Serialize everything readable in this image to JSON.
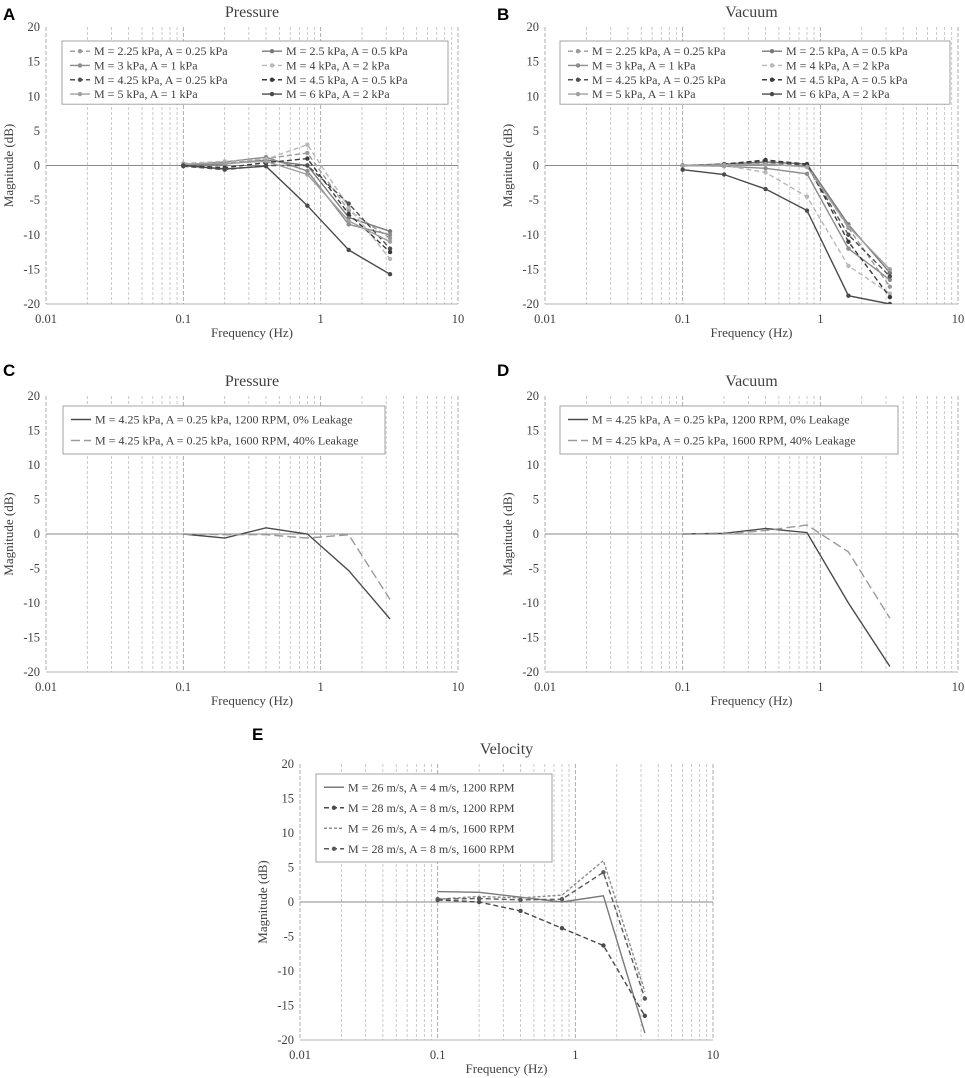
{
  "chart_data": [
    {
      "panel": "A",
      "type": "line",
      "title": "Pressure",
      "xlabel": "Frequency (Hz)",
      "ylabel": "Magnitude (dB)",
      "xscale": "log",
      "xlim": [
        0.01,
        10
      ],
      "ylim": [
        -20,
        20
      ],
      "xticks": [
        "0.01",
        "0.1",
        "1",
        "10"
      ],
      "yticks": [
        "20",
        "15",
        "10",
        "5",
        "0",
        "-5",
        "-10",
        "-15",
        "-20"
      ],
      "x": [
        0.1,
        0.2,
        0.4,
        0.8,
        1.6,
        3.2
      ],
      "legend_columns": 2,
      "series": [
        {
          "name": "M = 2.25 kPa, A = 0.25 kPa",
          "values": [
            0.2,
            0.3,
            1.0,
            1.8,
            -6.5,
            -10.5
          ],
          "color": "#9a9a9a",
          "dash": "5,3",
          "marker": true
        },
        {
          "name": "M = 2.5 kPa, A = 0.5 kPa",
          "values": [
            0.0,
            0.2,
            0.8,
            0.0,
            -7.5,
            -9.5
          ],
          "color": "#7a7a7a",
          "dash": "",
          "marker": true
        },
        {
          "name": "M = 3 kPa, A = 1 kPa",
          "values": [
            0.1,
            0.5,
            1.2,
            -0.8,
            -8.5,
            -10.0
          ],
          "color": "#8c8c8c",
          "dash": "",
          "marker": true
        },
        {
          "name": "M = 4 kPa, A = 2 kPa",
          "values": [
            0.3,
            0.6,
            0.9,
            3.0,
            -6.0,
            -13.5
          ],
          "color": "#b8b8b8",
          "dash": "5,3",
          "marker": true
        },
        {
          "name": "M = 4.25 kPa, A = 0.25 kPa",
          "values": [
            -0.1,
            -0.6,
            0.0,
            0.0,
            -5.5,
            -12.0
          ],
          "color": "#505050",
          "dash": "5,3",
          "marker": true
        },
        {
          "name": "M = 4.5 kPa, A = 0.5 kPa",
          "values": [
            0.0,
            -0.3,
            0.4,
            1.0,
            -7.0,
            -12.5
          ],
          "color": "#3a3a3a",
          "dash": "5,3",
          "marker": true
        },
        {
          "name": "M = 5 kPa, A = 1 kPa",
          "values": [
            0.2,
            0.3,
            0.6,
            -1.3,
            -8.0,
            -11.0
          ],
          "color": "#a0a0a0",
          "dash": "",
          "marker": true
        },
        {
          "name": "M = 6 kPa, A = 2 kPa",
          "values": [
            0.0,
            -0.5,
            -0.1,
            -5.8,
            -12.2,
            -15.7
          ],
          "color": "#4a4a4a",
          "dash": "",
          "marker": true
        }
      ]
    },
    {
      "panel": "B",
      "type": "line",
      "title": "Vacuum",
      "xlabel": "Frequency (Hz)",
      "ylabel": "Magnitude (dB)",
      "xscale": "log",
      "xlim": [
        0.01,
        10
      ],
      "ylim": [
        -20,
        20
      ],
      "xticks": [
        "0.01",
        "0.1",
        "1",
        "10"
      ],
      "yticks": [
        "20",
        "15",
        "10",
        "5",
        "0",
        "-5",
        "-10",
        "-15",
        "-20"
      ],
      "x": [
        0.1,
        0.2,
        0.4,
        0.8,
        1.6,
        3.2
      ],
      "legend_columns": 2,
      "series": [
        {
          "name": "M = 2.25 kPa, A = 0.25 kPa",
          "values": [
            0.0,
            0.0,
            0.3,
            0.1,
            -9.0,
            -17.5
          ],
          "color": "#9a9a9a",
          "dash": "5,3",
          "marker": true
        },
        {
          "name": "M = 2.5 kPa, A = 0.5 kPa",
          "values": [
            0.0,
            0.2,
            0.5,
            0.2,
            -8.5,
            -15.5
          ],
          "color": "#7a7a7a",
          "dash": "",
          "marker": true
        },
        {
          "name": "M = 3 kPa, A = 1 kPa",
          "values": [
            0.0,
            -0.1,
            -0.4,
            -1.2,
            -12.0,
            -16.5
          ],
          "color": "#8c8c8c",
          "dash": "",
          "marker": true
        },
        {
          "name": "M = 4 kPa, A = 2 kPa",
          "values": [
            0.0,
            0.0,
            -1.0,
            -4.5,
            -14.5,
            -18.5
          ],
          "color": "#b8b8b8",
          "dash": "5,3",
          "marker": true
        },
        {
          "name": "M = 4.25 kPa, A = 0.25 kPa",
          "values": [
            0.0,
            0.1,
            0.6,
            0.0,
            -10.0,
            -16.0
          ],
          "color": "#505050",
          "dash": "5,3",
          "marker": true
        },
        {
          "name": "M = 4.5 kPa, A = 0.5 kPa",
          "values": [
            0.0,
            0.2,
            0.8,
            0.2,
            -11.0,
            -19.0
          ],
          "color": "#3a3a3a",
          "dash": "5,3",
          "marker": true
        },
        {
          "name": "M = 5 kPa, A = 1 kPa",
          "values": [
            0.0,
            0.1,
            0.2,
            -0.2,
            -8.8,
            -15.0
          ],
          "color": "#a0a0a0",
          "dash": "",
          "marker": true
        },
        {
          "name": "M = 6 kPa, A = 2 kPa",
          "values": [
            -0.6,
            -1.3,
            -3.4,
            -6.5,
            -18.8,
            -20.0
          ],
          "color": "#4a4a4a",
          "dash": "",
          "marker": true
        }
      ]
    },
    {
      "panel": "C",
      "type": "line",
      "title": "Pressure",
      "xlabel": "Frequency (Hz)",
      "ylabel": "Magnitude (dB)",
      "xscale": "log",
      "xlim": [
        0.01,
        10
      ],
      "ylim": [
        -20,
        20
      ],
      "xticks": [
        "0.01",
        "0.1",
        "1",
        "10"
      ],
      "yticks": [
        "20",
        "15",
        "10",
        "5",
        "0",
        "-5",
        "-10",
        "-15",
        "-20"
      ],
      "x": [
        0.1,
        0.2,
        0.4,
        0.8,
        1.6,
        3.2
      ],
      "legend_columns": 1,
      "series": [
        {
          "name": "M = 4.25 kPa, A = 0.25 kPa, 1200 RPM, 0% Leakage",
          "values": [
            0.0,
            -0.6,
            0.9,
            0.0,
            -5.3,
            -12.3
          ],
          "color": "#4a4a4a",
          "dash": "",
          "marker": false
        },
        {
          "name": "M = 4.25 kPa, A = 0.25 kPa, 1600 RPM, 40% Leakage",
          "values": [
            0.0,
            -0.1,
            -0.1,
            -0.6,
            -0.1,
            -9.5
          ],
          "color": "#9a9a9a",
          "dash": "9,4",
          "marker": false
        }
      ]
    },
    {
      "panel": "D",
      "type": "line",
      "title": "Vacuum",
      "xlabel": "Frequency (Hz)",
      "ylabel": "Magnitude (dB)",
      "xscale": "log",
      "xlim": [
        0.01,
        10
      ],
      "ylim": [
        -20,
        20
      ],
      "xticks": [
        "0.01",
        "0.1",
        "1",
        "10"
      ],
      "yticks": [
        "20",
        "15",
        "10",
        "5",
        "0",
        "-5",
        "-10",
        "-15",
        "-20"
      ],
      "x": [
        0.1,
        0.2,
        0.4,
        0.8,
        1.6,
        3.2
      ],
      "legend_columns": 1,
      "series": [
        {
          "name": "M = 4.25 kPa, A = 0.25 kPa, 1200 RPM, 0% Leakage",
          "values": [
            0.0,
            0.1,
            0.8,
            0.2,
            -10.0,
            -19.2
          ],
          "color": "#4a4a4a",
          "dash": "",
          "marker": false
        },
        {
          "name": "M = 4.25 kPa, A = 0.25 kPa, 1600 RPM, 40% Leakage",
          "values": [
            0.0,
            0.0,
            0.5,
            1.3,
            -2.6,
            -12.2
          ],
          "color": "#9a9a9a",
          "dash": "9,4",
          "marker": false
        }
      ]
    },
    {
      "panel": "E",
      "type": "line",
      "title": "Velocity",
      "xlabel": "Frequency (Hz)",
      "ylabel": "Magnitude (dB)",
      "xscale": "log",
      "xlim": [
        0.01,
        10
      ],
      "ylim": [
        -20,
        20
      ],
      "xticks": [
        "0.01",
        "0.1",
        "1",
        "10"
      ],
      "yticks": [
        "20",
        "15",
        "10",
        "5",
        "0",
        "-5",
        "-10",
        "-15",
        "-20"
      ],
      "x": [
        0.1,
        0.2,
        0.4,
        0.8,
        1.6,
        3.2
      ],
      "legend_columns": 1,
      "series": [
        {
          "name": "M = 26 m/s, A = 4 m/s, 1200 RPM",
          "values": [
            1.5,
            1.4,
            0.7,
            0.0,
            0.9,
            -19.0
          ],
          "color": "#7a7a7a",
          "dash": "",
          "marker": false
        },
        {
          "name": "M = 28 m/s, A = 8 m/s, 1200 RPM",
          "values": [
            0.3,
            0.0,
            -1.3,
            -3.8,
            -6.3,
            -16.5
          ],
          "color": "#4a4a4a",
          "dash": "5,3",
          "marker": true
        },
        {
          "name": "M = 26 m/s, A = 4 m/s, 1600 RPM",
          "values": [
            0.4,
            0.8,
            0.6,
            1.0,
            6.0,
            -13.0
          ],
          "color": "#8c8c8c",
          "dash": "3,2",
          "marker": false
        },
        {
          "name": "M = 28 m/s, A = 8 m/s, 1600 RPM",
          "values": [
            0.4,
            0.5,
            0.3,
            0.4,
            4.3,
            -14.0
          ],
          "color": "#5a5a5a",
          "dash": "5,3",
          "marker": true
        }
      ]
    }
  ]
}
